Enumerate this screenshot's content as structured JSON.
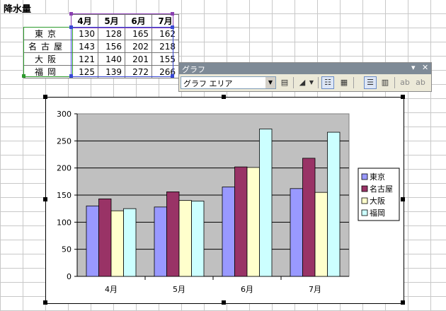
{
  "sheet": {
    "title": "降水量"
  },
  "table": {
    "months": [
      "4月",
      "5月",
      "6月",
      "7月"
    ],
    "rows": [
      {
        "city": "東京",
        "values": [
          130,
          128,
          165,
          162
        ]
      },
      {
        "city": "名古屋",
        "values": [
          143,
          156,
          202,
          218
        ]
      },
      {
        "city": "大阪",
        "values": [
          121,
          140,
          201,
          155
        ]
      },
      {
        "city": "福岡",
        "values": [
          125,
          139,
          272,
          266
        ]
      }
    ]
  },
  "toolbar": {
    "title": "グラフ",
    "object_select_value": "グラフ エリア",
    "buttons": [
      "format-selected-object-icon",
      "chart-type-icon",
      "legend-icon",
      "data-table-icon",
      "by-row-icon",
      "by-column-icon",
      "angle-text-downward-icon",
      "angle-text-upward-icon"
    ]
  },
  "chart_data": {
    "type": "bar",
    "categories": [
      "4月",
      "5月",
      "6月",
      "7月"
    ],
    "series": [
      {
        "name": "東京",
        "values": [
          130,
          128,
          165,
          162
        ],
        "color": "#9999ff"
      },
      {
        "name": "名古屋",
        "values": [
          143,
          156,
          202,
          218
        ],
        "color": "#993366"
      },
      {
        "name": "大阪",
        "values": [
          121,
          140,
          201,
          155
        ],
        "color": "#ffffcc"
      },
      {
        "name": "福岡",
        "values": [
          125,
          139,
          272,
          266
        ],
        "color": "#ccffff"
      }
    ],
    "ylim": [
      0,
      300
    ],
    "yticks": [
      0,
      50,
      100,
      150,
      200,
      250,
      300
    ],
    "grid": true,
    "plot_background": "#c0c0c0",
    "legend_position": "right"
  }
}
